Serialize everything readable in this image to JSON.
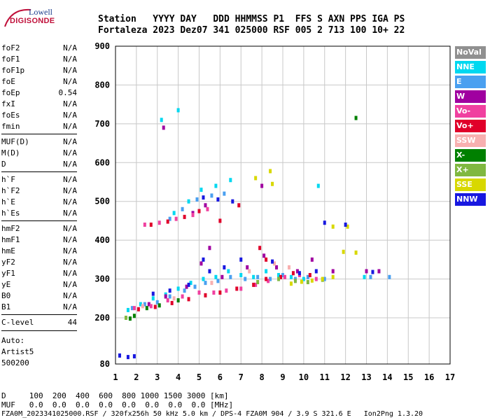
{
  "logo": {
    "line1": "Lowell",
    "line2": "DIGISONDE"
  },
  "header": {
    "line1": "Station   YYYY DAY   DDD HHMMSS P1  FFS S AXN PPS IGA PS",
    "line2": "Fortaleza 2023 Dez07 341 025000 RSF 005 2 713 100 10+ 22"
  },
  "params": [
    {
      "name": "foF2",
      "value": "N/A"
    },
    {
      "name": "foF1",
      "value": "N/A"
    },
    {
      "name": "foF1p",
      "value": "N/A"
    },
    {
      "name": "foE",
      "value": "N/A"
    },
    {
      "name": "foEp",
      "value": "0.54"
    },
    {
      "name": "fxI",
      "value": "N/A"
    },
    {
      "name": "foEs",
      "value": "N/A"
    },
    {
      "name": "fmin",
      "value": "N/A"
    },
    {
      "name": "MUF(D)",
      "value": "N/A"
    },
    {
      "name": "M(D)",
      "value": "N/A"
    },
    {
      "name": "D",
      "value": "N/A"
    },
    {
      "name": "h`F",
      "value": "N/A"
    },
    {
      "name": "h`F2",
      "value": "N/A"
    },
    {
      "name": "h`E",
      "value": "N/A"
    },
    {
      "name": "h`Es",
      "value": "N/A"
    },
    {
      "name": "hmF2",
      "value": "N/A"
    },
    {
      "name": "hmF1",
      "value": "N/A"
    },
    {
      "name": "hmE",
      "value": "N/A"
    },
    {
      "name": "yF2",
      "value": "N/A"
    },
    {
      "name": "yF1",
      "value": "N/A"
    },
    {
      "name": "yE",
      "value": "N/A"
    },
    {
      "name": "B0",
      "value": "N/A"
    },
    {
      "name": "B1",
      "value": "N/A"
    },
    {
      "name": "C-level",
      "value": "44"
    }
  ],
  "auto": {
    "label": "Auto:",
    "software": "Artist5",
    "version": "500200"
  },
  "legend": [
    {
      "label": "NoVal",
      "color": "#909090",
      "text_color": "#ffffff"
    },
    {
      "label": "NNE",
      "color": "#00d8f0",
      "text_color": "#ffffff"
    },
    {
      "label": "E",
      "color": "#4aa0f0",
      "text_color": "#ffffff"
    },
    {
      "label": "W",
      "color": "#a000a0",
      "text_color": "#ffffff"
    },
    {
      "label": "Vo-",
      "color": "#f040a0",
      "text_color": "#ffffff"
    },
    {
      "label": "Vo+",
      "color": "#e0002a",
      "text_color": "#ffffff"
    },
    {
      "label": "SSW",
      "color": "#f8b0b0",
      "text_color": "#ffffff"
    },
    {
      "label": "X-",
      "color": "#008000",
      "text_color": "#ffffff"
    },
    {
      "label": "X+",
      "color": "#80b840",
      "text_color": "#ffffff"
    },
    {
      "label": "SSE",
      "color": "#d8d800",
      "text_color": "#ffffff"
    },
    {
      "label": "NNW",
      "color": "#1818e0",
      "text_color": "#ffffff"
    }
  ],
  "chart_data": {
    "type": "scatter",
    "xlim": [
      1,
      17
    ],
    "ylim": [
      80,
      900
    ],
    "x_ticks": [
      "1",
      "2",
      "3",
      "4",
      "5",
      "6",
      "7",
      "8",
      "9",
      "10",
      "11",
      "12",
      "13",
      "14",
      "15",
      "16",
      "17"
    ],
    "y_ticks": [
      "80",
      "200",
      "300",
      "400",
      "500",
      "600",
      "700",
      "800",
      "900"
    ],
    "grid": true,
    "series": [
      {
        "name": "E",
        "color": "#4aa0f0",
        "points": [
          [
            1.8,
            225
          ],
          [
            2.4,
            235
          ],
          [
            3.0,
            240
          ],
          [
            3.6,
            255
          ],
          [
            4.3,
            270
          ],
          [
            4.8,
            280
          ],
          [
            5.3,
            290
          ],
          [
            5.9,
            295
          ],
          [
            6.5,
            305
          ],
          [
            7.2,
            300
          ],
          [
            7.8,
            305
          ],
          [
            8.4,
            300
          ],
          [
            9.0,
            310
          ],
          [
            9.6,
            300
          ],
          [
            10.2,
            305
          ],
          [
            11.0,
            300
          ],
          [
            13.2,
            305
          ],
          [
            14.1,
            305
          ],
          [
            3.6,
            455
          ],
          [
            4.2,
            480
          ],
          [
            4.9,
            505
          ],
          [
            5.6,
            515
          ],
          [
            6.2,
            520
          ]
        ]
      },
      {
        "name": "NNE",
        "color": "#00d8f0",
        "points": [
          [
            1.6,
            220
          ],
          [
            2.2,
            235
          ],
          [
            2.8,
            250
          ],
          [
            3.4,
            260
          ],
          [
            4.0,
            275
          ],
          [
            4.6,
            290
          ],
          [
            5.2,
            300
          ],
          [
            5.8,
            305
          ],
          [
            6.4,
            320
          ],
          [
            7.0,
            310
          ],
          [
            7.6,
            305
          ],
          [
            8.2,
            320
          ],
          [
            8.8,
            310
          ],
          [
            9.4,
            305
          ],
          [
            10.0,
            300
          ],
          [
            10.7,
            540
          ],
          [
            12.9,
            305
          ],
          [
            3.2,
            710
          ],
          [
            4.0,
            735
          ],
          [
            3.8,
            470
          ],
          [
            4.5,
            500
          ],
          [
            5.1,
            530
          ],
          [
            5.8,
            540
          ],
          [
            6.5,
            555
          ]
        ]
      },
      {
        "name": "W",
        "color": "#a000a0",
        "points": [
          [
            2.6,
            235
          ],
          [
            3.4,
            255
          ],
          [
            4.4,
            280
          ],
          [
            5.1,
            340
          ],
          [
            5.5,
            380
          ],
          [
            6.1,
            305
          ],
          [
            7.3,
            330
          ],
          [
            8.1,
            360
          ],
          [
            8.7,
            330
          ],
          [
            9.7,
            320
          ],
          [
            10.4,
            350
          ],
          [
            11.4,
            320
          ],
          [
            13.0,
            320
          ],
          [
            13.6,
            320
          ],
          [
            4.7,
            470
          ],
          [
            5.3,
            490
          ],
          [
            3.3,
            690
          ],
          [
            8.0,
            540
          ]
        ]
      },
      {
        "name": "Vo-",
        "color": "#f040a0",
        "points": [
          [
            1.9,
            225
          ],
          [
            2.7,
            230
          ],
          [
            3.5,
            245
          ],
          [
            4.2,
            255
          ],
          [
            5.0,
            265
          ],
          [
            5.7,
            265
          ],
          [
            6.3,
            270
          ],
          [
            7.0,
            275
          ],
          [
            7.7,
            285
          ],
          [
            8.3,
            295
          ],
          [
            9.1,
            305
          ],
          [
            9.8,
            310
          ],
          [
            10.6,
            300
          ],
          [
            2.4,
            440
          ],
          [
            3.1,
            445
          ],
          [
            3.9,
            455
          ],
          [
            4.7,
            465
          ],
          [
            5.4,
            480
          ]
        ]
      },
      {
        "name": "Vo+",
        "color": "#e0002a",
        "points": [
          [
            2.1,
            222
          ],
          [
            2.9,
            228
          ],
          [
            3.7,
            238
          ],
          [
            4.5,
            248
          ],
          [
            5.3,
            258
          ],
          [
            6.0,
            265
          ],
          [
            6.8,
            275
          ],
          [
            7.6,
            285
          ],
          [
            8.2,
            300
          ],
          [
            7.9,
            380
          ],
          [
            8.2,
            350
          ],
          [
            8.9,
            305
          ],
          [
            9.5,
            315
          ],
          [
            10.3,
            310
          ],
          [
            2.7,
            440
          ],
          [
            3.5,
            448
          ],
          [
            4.3,
            460
          ],
          [
            5.0,
            475
          ],
          [
            6.0,
            450
          ],
          [
            6.9,
            490
          ]
        ]
      },
      {
        "name": "SSW",
        "color": "#f8b0b0",
        "points": [
          [
            2.3,
            230
          ],
          [
            3.8,
            250
          ],
          [
            5.6,
            290
          ],
          [
            7.4,
            320
          ],
          [
            8.6,
            340
          ],
          [
            9.3,
            330
          ]
        ]
      },
      {
        "name": "X-",
        "color": "#008000",
        "points": [
          [
            1.7,
            198
          ],
          [
            1.9,
            205
          ],
          [
            2.5,
            225
          ],
          [
            3.1,
            232
          ],
          [
            4.0,
            245
          ],
          [
            12.5,
            715
          ]
        ]
      },
      {
        "name": "X+",
        "color": "#80b840",
        "points": [
          [
            7.8,
            292
          ],
          [
            8.8,
            300
          ],
          [
            9.6,
            295
          ],
          [
            10.2,
            292
          ],
          [
            10.9,
            298
          ],
          [
            1.5,
            200
          ]
        ]
      },
      {
        "name": "SSE",
        "color": "#d8d800",
        "points": [
          [
            9.4,
            288
          ],
          [
            9.9,
            293
          ],
          [
            10.4,
            296
          ],
          [
            10.9,
            300
          ],
          [
            11.4,
            305
          ],
          [
            11.9,
            370
          ],
          [
            11.4,
            435
          ],
          [
            12.1,
            435
          ],
          [
            12.5,
            368
          ],
          [
            8.5,
            545
          ],
          [
            8.4,
            578
          ],
          [
            7.7,
            560
          ]
        ]
      },
      {
        "name": "NNW",
        "color": "#1818e0",
        "points": [
          [
            1.2,
            102
          ],
          [
            1.6,
            98
          ],
          [
            1.9,
            100
          ],
          [
            2.8,
            262
          ],
          [
            3.6,
            270
          ],
          [
            4.5,
            285
          ],
          [
            5.2,
            350
          ],
          [
            5.5,
            320
          ],
          [
            6.2,
            330
          ],
          [
            7.0,
            350
          ],
          [
            8.5,
            345
          ],
          [
            9.8,
            315
          ],
          [
            10.6,
            320
          ],
          [
            12.0,
            440
          ],
          [
            5.2,
            510
          ],
          [
            5.9,
            505
          ],
          [
            6.6,
            500
          ],
          [
            13.3,
            318
          ],
          [
            11.0,
            445
          ]
        ]
      }
    ]
  },
  "footer": {
    "line1": "D     100  200  400  600  800 1000 1500 3000 [km]",
    "line2": "MUF   0.0  0.0  0.0  0.0  0.0  0.0  0.0  0.0 [MHz]",
    "line3": "FZA0M_2023341025000.RSF / 320fx256h 50 kHz 5.0 km / DPS-4 FZA0M 904 / 3.9 S 321.6 E   Ion2Png 1.3.20"
  }
}
